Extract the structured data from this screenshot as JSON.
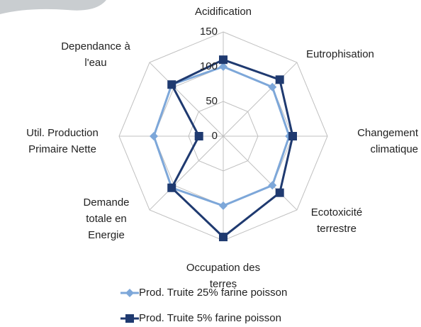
{
  "chart_data": {
    "type": "radar",
    "categories": [
      "Acidification",
      "Eutrophisation",
      "Changement\nclimatique",
      "Ecotoxicité\nterrestre",
      "Occupation des\nterres",
      "Demande\ntotale en\nEnergie",
      "Util. Production\nPrimaire Nette",
      "Dependance à\nl'eau"
    ],
    "series": [
      {
        "name": "Prod. Truite 25% farine poisson",
        "color": "#7da7d9",
        "marker": "diamond",
        "values": [
          100,
          100,
          95,
          100,
          100,
          105,
          100,
          105
        ]
      },
      {
        "name": "Prod. Truite 5% farine poisson",
        "color": "#1f3a70",
        "marker": "square",
        "values": [
          110,
          115,
          100,
          115,
          145,
          105,
          35,
          105
        ]
      }
    ],
    "rlim": [
      0,
      150
    ],
    "rticks": [
      0,
      50,
      100,
      150
    ],
    "grid": true,
    "legend": "bottom"
  }
}
